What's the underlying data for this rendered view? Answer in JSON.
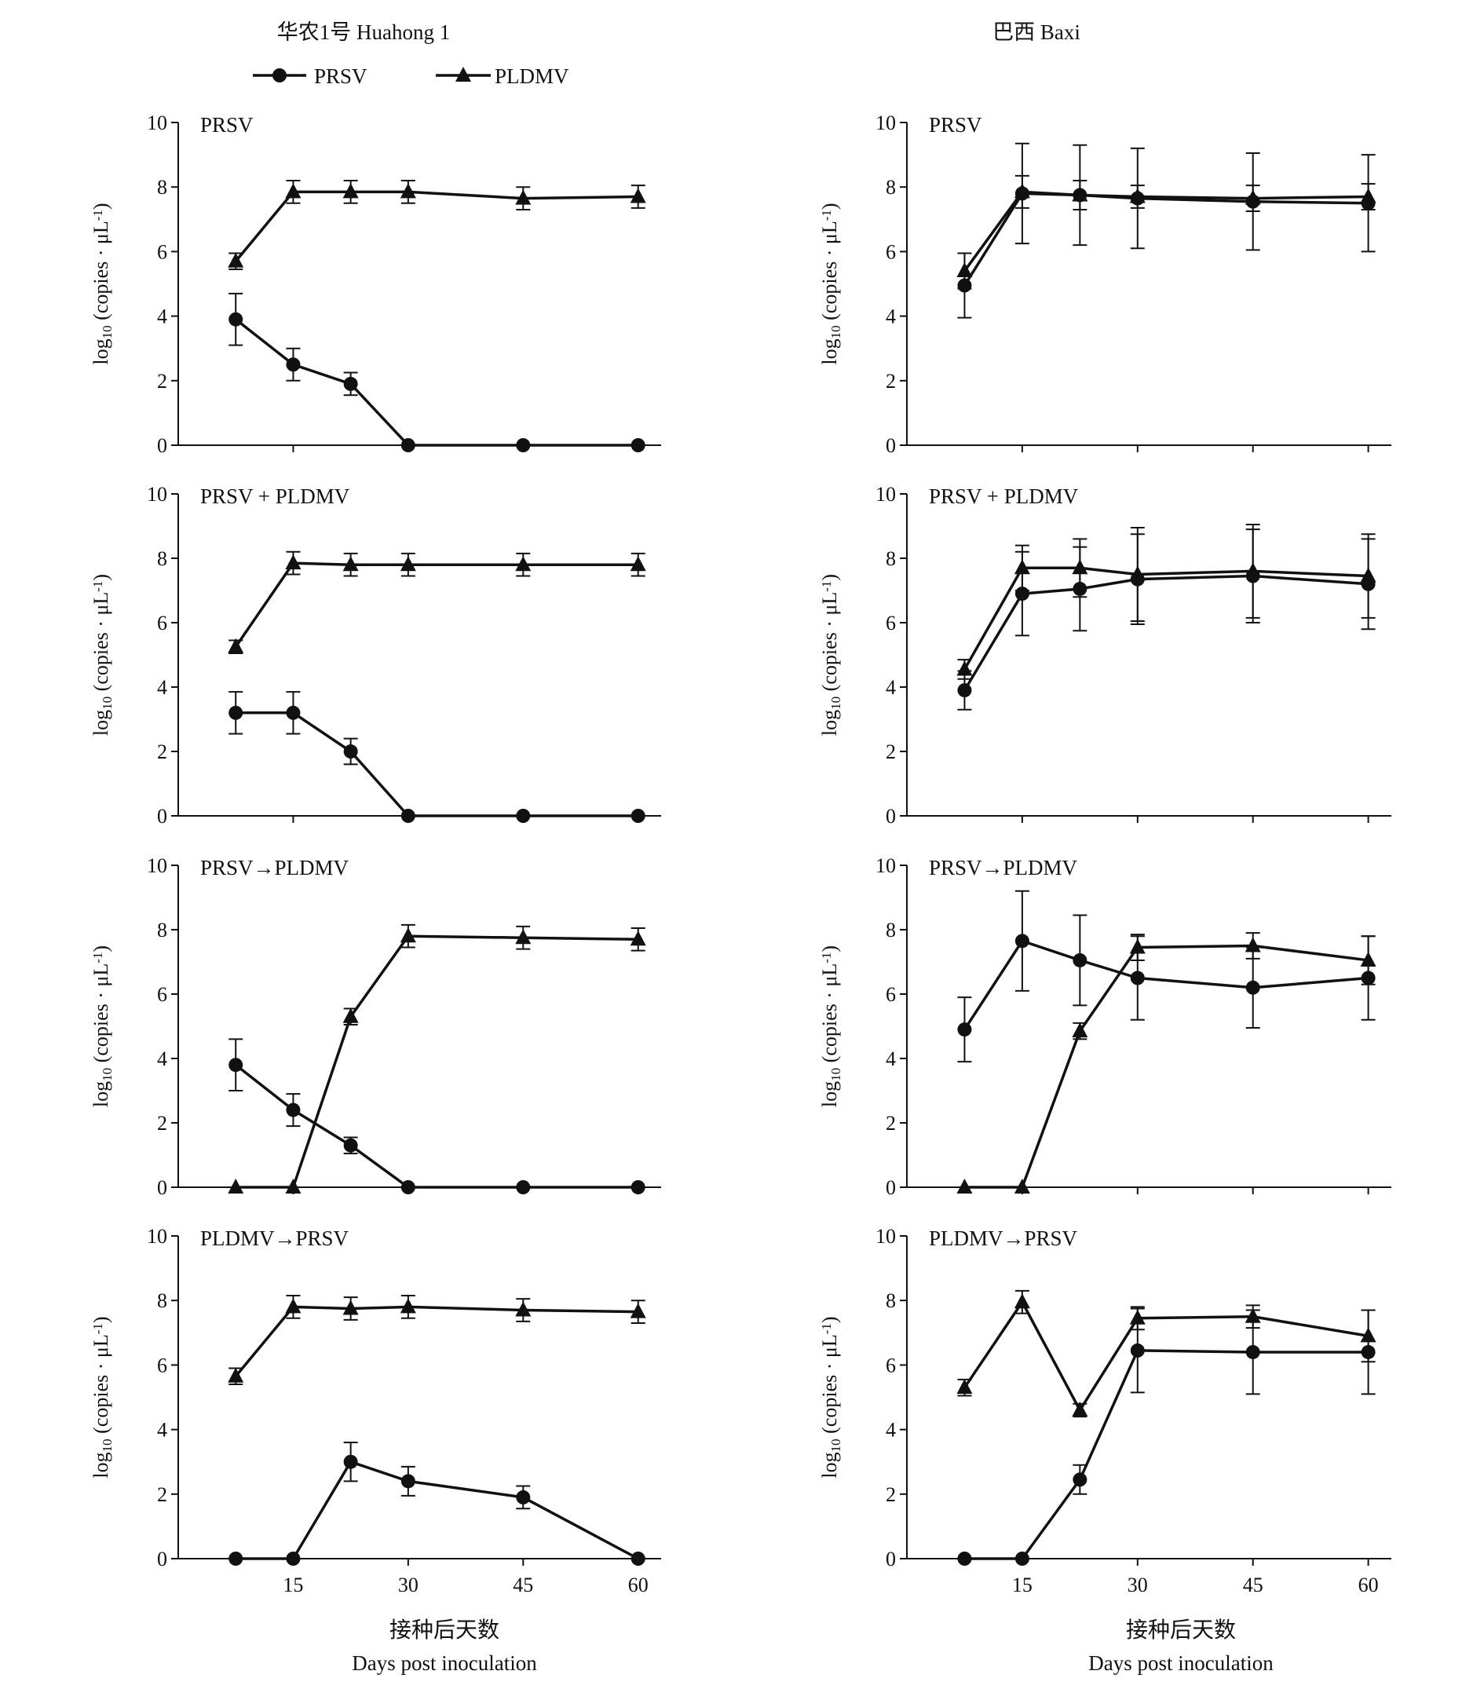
{
  "columns": [
    {
      "title": "华农1号 Huahong 1"
    },
    {
      "title": "巴西 Baxi"
    }
  ],
  "legend": [
    {
      "label": "PRSV",
      "marker": "circle"
    },
    {
      "label": "PLDMV",
      "marker": "triangle"
    }
  ],
  "axes": {
    "ylabel_main": "log",
    "ylabel_sub": "10",
    "ylabel_rest": " (copies · μL",
    "ylabel_sup": "-1",
    "ylabel_end": ")",
    "xlabel_cn": "接种后天数",
    "xlabel_en": "Days post inoculation",
    "yticks": [
      "0",
      "2",
      "4",
      "6",
      "8",
      "10"
    ],
    "xticks": [
      "15",
      "30",
      "45",
      "60"
    ]
  },
  "chart_data": [
    {
      "type": "line",
      "column": "华农1号 Huahong 1",
      "panel_label": "PRSV",
      "x": [
        7.5,
        15,
        22.5,
        30,
        45,
        60
      ],
      "ylim": [
        0,
        10
      ],
      "series": [
        {
          "name": "PRSV",
          "marker": "circle",
          "values": [
            3.9,
            2.5,
            1.9,
            0,
            0,
            0
          ],
          "errors": [
            0.8,
            0.5,
            0.35,
            0,
            0,
            0
          ]
        },
        {
          "name": "PLDMV",
          "marker": "triangle",
          "values": [
            5.7,
            7.85,
            7.85,
            7.85,
            7.65,
            7.7
          ],
          "errors": [
            0.25,
            0.35,
            0.35,
            0.35,
            0.35,
            0.35
          ]
        }
      ]
    },
    {
      "type": "line",
      "column": "巴西 Baxi",
      "panel_label": "PRSV",
      "x": [
        7.5,
        15,
        22.5,
        30,
        45,
        60
      ],
      "ylim": [
        0,
        10
      ],
      "series": [
        {
          "name": "PRSV",
          "marker": "circle",
          "values": [
            4.95,
            7.8,
            7.75,
            7.65,
            7.55,
            7.5
          ],
          "errors": [
            1.0,
            1.55,
            1.55,
            1.55,
            1.5,
            1.5
          ]
        },
        {
          "name": "PLDMV",
          "marker": "triangle",
          "values": [
            5.4,
            7.85,
            7.75,
            7.7,
            7.65,
            7.7
          ],
          "errors": [
            0.55,
            0.5,
            0.45,
            0.35,
            0.4,
            0.4
          ]
        }
      ]
    },
    {
      "type": "line",
      "column": "华农1号 Huahong 1",
      "panel_label": "PRSV + PLDMV",
      "x": [
        7.5,
        15,
        22.5,
        30,
        45,
        60
      ],
      "ylim": [
        0,
        10
      ],
      "series": [
        {
          "name": "PRSV",
          "marker": "circle",
          "values": [
            3.2,
            3.2,
            2.0,
            0,
            0,
            0
          ],
          "errors": [
            0.65,
            0.65,
            0.4,
            0,
            0,
            0
          ]
        },
        {
          "name": "PLDMV",
          "marker": "triangle",
          "values": [
            5.25,
            7.85,
            7.8,
            7.8,
            7.8,
            7.8
          ],
          "errors": [
            0.2,
            0.35,
            0.35,
            0.35,
            0.35,
            0.35
          ]
        }
      ]
    },
    {
      "type": "line",
      "column": "巴西 Baxi",
      "panel_label": "PRSV + PLDMV",
      "x": [
        7.5,
        15,
        22.5,
        30,
        45,
        60
      ],
      "ylim": [
        0,
        10
      ],
      "series": [
        {
          "name": "PRSV",
          "marker": "circle",
          "values": [
            3.9,
            6.9,
            7.05,
            7.35,
            7.45,
            7.2
          ],
          "errors": [
            0.6,
            1.3,
            1.3,
            1.4,
            1.45,
            1.4
          ]
        },
        {
          "name": "PLDMV",
          "marker": "triangle",
          "values": [
            4.55,
            7.7,
            7.7,
            7.5,
            7.6,
            7.45
          ],
          "errors": [
            0.3,
            0.7,
            0.9,
            1.45,
            1.45,
            1.3
          ]
        }
      ]
    },
    {
      "type": "line",
      "column": "华农1号 Huahong 1",
      "panel_label": "PRSV→PLDMV",
      "x": [
        7.5,
        15,
        22.5,
        30,
        45,
        60
      ],
      "ylim": [
        0,
        10
      ],
      "series": [
        {
          "name": "PRSV",
          "marker": "circle",
          "values": [
            3.8,
            2.4,
            1.3,
            0,
            0,
            0
          ],
          "errors": [
            0.8,
            0.5,
            0.25,
            0,
            0,
            0
          ]
        },
        {
          "name": "PLDMV",
          "marker": "triangle",
          "values": [
            0,
            0,
            5.3,
            7.8,
            7.75,
            7.7
          ],
          "errors": [
            0,
            0,
            0.25,
            0.35,
            0.35,
            0.35
          ]
        }
      ]
    },
    {
      "type": "line",
      "column": "巴西 Baxi",
      "panel_label": "PRSV→PLDMV",
      "x": [
        7.5,
        15,
        22.5,
        30,
        45,
        60
      ],
      "ylim": [
        0,
        10
      ],
      "series": [
        {
          "name": "PRSV",
          "marker": "circle",
          "values": [
            4.9,
            7.65,
            7.05,
            6.5,
            6.2,
            6.5
          ],
          "errors": [
            1.0,
            1.55,
            1.4,
            1.3,
            1.25,
            1.3
          ]
        },
        {
          "name": "PLDMV",
          "marker": "triangle",
          "values": [
            0,
            0,
            4.85,
            7.45,
            7.5,
            7.05
          ],
          "errors": [
            0,
            0,
            0.25,
            0.4,
            0.4,
            0.75
          ]
        }
      ]
    },
    {
      "type": "line",
      "column": "华农1号 Huahong 1",
      "panel_label": "PLDMV→PRSV",
      "x": [
        7.5,
        15,
        22.5,
        30,
        45,
        60
      ],
      "ylim": [
        0,
        10
      ],
      "series": [
        {
          "name": "PRSV",
          "marker": "circle",
          "values": [
            0,
            0,
            3.0,
            2.4,
            1.9,
            0
          ],
          "errors": [
            0,
            0,
            0.6,
            0.45,
            0.35,
            0
          ]
        },
        {
          "name": "PLDMV",
          "marker": "triangle",
          "values": [
            5.65,
            7.8,
            7.75,
            7.8,
            7.7,
            7.65
          ],
          "errors": [
            0.25,
            0.35,
            0.35,
            0.35,
            0.35,
            0.35
          ]
        }
      ]
    },
    {
      "type": "line",
      "column": "巴西 Baxi",
      "panel_label": "PLDMV→PRSV",
      "x": [
        7.5,
        15,
        22.5,
        30,
        45,
        60
      ],
      "ylim": [
        0,
        10
      ],
      "series": [
        {
          "name": "PRSV",
          "marker": "circle",
          "values": [
            0,
            0,
            2.45,
            6.45,
            6.4,
            6.4
          ],
          "errors": [
            0,
            0,
            0.45,
            1.3,
            1.3,
            1.3
          ]
        },
        {
          "name": "PLDMV",
          "marker": "triangle",
          "values": [
            5.3,
            7.95,
            4.6,
            7.45,
            7.5,
            6.9
          ],
          "errors": [
            0.25,
            0.35,
            0.2,
            0.35,
            0.35,
            0.8
          ]
        }
      ]
    }
  ]
}
